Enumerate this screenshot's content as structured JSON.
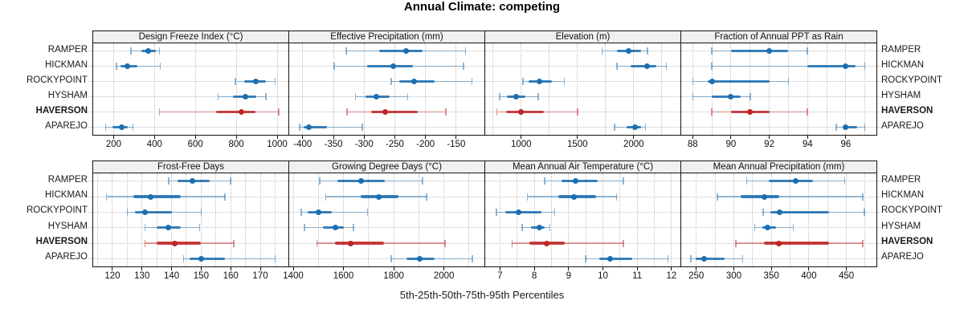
{
  "chart_data": {
    "type": "scatter",
    "subtype": "lattice-style percentile dotplot, 2x4 panel grid, one row per site",
    "title": "Annual Climate: competing",
    "caption": "5th-25th-50th-75th-95th Percentiles",
    "percentile_levels": [
      5,
      25,
      50,
      75,
      95
    ],
    "sites_top_to_bottom": [
      "RAMPER",
      "HICKMAN",
      "ROCKYPOINT",
      "HYSHAM",
      "HAVERSON",
      "APAREJO"
    ],
    "highlighted_site": "HAVERSON",
    "legend_position": "none",
    "grid": "dotted horizontal line per site row; dotted vertical lines at axis grid positions",
    "colors": {
      "series_normal": "#1c6fb0",
      "series_highlight": "#bf2626",
      "strip_bg": "#f0f0f0",
      "panel_border": "#141414",
      "gridline": "#c0c0c0",
      "text": "#1a1a1a"
    },
    "panels": [
      {
        "label": "Design Freeze Index (°C)",
        "row": 0,
        "col": 0,
        "xlim": [
          100,
          1055
        ],
        "ticks": [
          200,
          400,
          600,
          800,
          1000
        ],
        "gridlines": [
          200,
          400,
          600,
          800,
          1000
        ],
        "series": {
          "RAMPER": [
            285,
            335,
            370,
            405,
            425
          ],
          "HICKMAN": [
            213,
            232,
            268,
            317,
            428
          ],
          "ROCKYPOINT": [
            795,
            840,
            895,
            945,
            990
          ],
          "HYSHAM": [
            712,
            785,
            845,
            898,
            945
          ],
          "HAVERSON": [
            425,
            700,
            825,
            893,
            1008
          ],
          "APAREJO": [
            160,
            195,
            240,
            270,
            295
          ]
        }
      },
      {
        "label": "Effective Precipitation (mm)",
        "row": 0,
        "col": 1,
        "xlim": [
          -422,
          -104
        ],
        "ticks": [
          -400,
          -350,
          -300,
          -250,
          -200,
          -150
        ],
        "gridlines": [
          -400,
          -350,
          -300,
          -250,
          -200,
          -150
        ],
        "series": {
          "RAMPER": [
            -329,
            -275,
            -231,
            -205,
            -135
          ],
          "HICKMAN": [
            -349,
            -295,
            -252,
            -220,
            -138
          ],
          "ROCKYPOINT": [
            -256,
            -243,
            -219,
            -185,
            -124
          ],
          "HYSHAM": [
            -314,
            -298,
            -280,
            -259,
            -229
          ],
          "HAVERSON": [
            -328,
            -288,
            -265,
            -212,
            -167
          ],
          "APAREJO": [
            -405,
            -398,
            -390,
            -360,
            -303
          ]
        }
      },
      {
        "label": "Elevation (m)",
        "row": 0,
        "col": 2,
        "xlim": [
          680,
          2416
        ],
        "ticks": [
          1000,
          1500,
          2000
        ],
        "gridlines": [
          750,
          1000,
          1250,
          1500,
          1750,
          2000,
          2250
        ],
        "series": {
          "RAMPER": [
            1720,
            1850,
            1958,
            2065,
            2122
          ],
          "HICKMAN": [
            1852,
            1970,
            2122,
            2205,
            2292
          ],
          "ROCKYPOINT": [
            1015,
            1065,
            1165,
            1275,
            1385
          ],
          "HYSHAM": [
            810,
            875,
            958,
            1040,
            1153
          ],
          "HAVERSON": [
            785,
            865,
            1000,
            1205,
            1500
          ],
          "APAREJO": [
            1830,
            1935,
            2012,
            2065,
            2105
          ]
        }
      },
      {
        "label": "Fraction of Annual PPT as Rain",
        "row": 0,
        "col": 3,
        "xlim": [
          87.4,
          97.6
        ],
        "ticks": [
          88,
          90,
          92,
          94,
          96
        ],
        "gridlines": [
          88,
          89,
          90,
          91,
          92,
          93,
          94,
          95,
          96,
          97
        ],
        "series": {
          "RAMPER": [
            89,
            90,
            92,
            93,
            94
          ],
          "HICKMAN": [
            89,
            94,
            96,
            96.5,
            97
          ],
          "ROCKYPOINT": [
            88,
            88.8,
            89,
            92,
            93
          ],
          "HYSHAM": [
            88,
            89,
            90,
            90.5,
            91
          ],
          "HAVERSON": [
            89,
            90,
            91,
            92,
            94
          ],
          "APAREJO": [
            95.5,
            95.9,
            96,
            96.6,
            97
          ]
        }
      },
      {
        "label": "Frost-Free Days",
        "row": 1,
        "col": 0,
        "xlim": [
          113.5,
          179.5
        ],
        "ticks": [
          120,
          130,
          140,
          150,
          160,
          170
        ],
        "gridlines": [
          115,
          120,
          125,
          130,
          135,
          140,
          145,
          150,
          155,
          160,
          165,
          170,
          175
        ],
        "series": {
          "RAMPER": [
            139,
            142,
            147,
            153,
            160
          ],
          "HICKMAN": [
            118,
            127,
            133,
            143,
            158
          ],
          "ROCKYPOINT": [
            125,
            127.5,
            131,
            140,
            150
          ],
          "HYSHAM": [
            131,
            135,
            139,
            143,
            149.5
          ],
          "HAVERSON": [
            131,
            135,
            141,
            150,
            161
          ],
          "APAREJO": [
            144,
            146,
            150,
            158,
            175
          ]
        }
      },
      {
        "label": "Growing Degree Days (°C)",
        "row": 1,
        "col": 1,
        "xlim": [
          1384,
          2161
        ],
        "ticks": [
          1400,
          1600,
          1800,
          2000
        ],
        "gridlines": [
          1400,
          1500,
          1600,
          1700,
          1800,
          1900,
          2000,
          2100
        ],
        "series": {
          "RAMPER": [
            1505,
            1575,
            1670,
            1765,
            1915
          ],
          "HICKMAN": [
            1530,
            1670,
            1742,
            1820,
            1930
          ],
          "ROCKYPOINT": [
            1432,
            1458,
            1500,
            1554,
            1695
          ],
          "HYSHAM": [
            1445,
            1517,
            1568,
            1600,
            1640
          ],
          "HAVERSON": [
            1494,
            1565,
            1630,
            1760,
            2005
          ],
          "APAREJO": [
            1790,
            1852,
            1905,
            1964,
            2113
          ]
        }
      },
      {
        "label": "Mean Annual Air Temperature (°C)",
        "row": 1,
        "col": 2,
        "xlim": [
          6.57,
          12.26
        ],
        "ticks": [
          7,
          8,
          9,
          10,
          11,
          12
        ],
        "gridlines": [
          7,
          7.5,
          8,
          8.5,
          9,
          9.5,
          10,
          10.5,
          11,
          11.5,
          12
        ],
        "series": {
          "RAMPER": [
            8.3,
            8.8,
            9.2,
            9.85,
            10.6
          ],
          "HICKMAN": [
            7.8,
            8.7,
            9.15,
            9.8,
            10.4
          ],
          "ROCKYPOINT": [
            6.9,
            7.15,
            7.55,
            8.2,
            8.6
          ],
          "HYSHAM": [
            7.65,
            7.9,
            8.15,
            8.3,
            8.45
          ],
          "HAVERSON": [
            7.35,
            7.85,
            8.35,
            8.9,
            10.6
          ],
          "APAREJO": [
            9.5,
            9.9,
            10.2,
            10.85,
            11.9
          ]
        }
      },
      {
        "label": "Mean Annual Precipitation (mm)",
        "row": 1,
        "col": 3,
        "xlim": [
          230,
          490
        ],
        "ticks": [
          250,
          300,
          350,
          400,
          450
        ],
        "gridlines": [
          250,
          275,
          300,
          325,
          350,
          375,
          400,
          425,
          450,
          475
        ],
        "series": {
          "RAMPER": [
            317,
            347,
            382,
            406,
            448
          ],
          "HICKMAN": [
            278,
            309,
            341,
            361,
            472
          ],
          "ROCKYPOINT": [
            339,
            349,
            361,
            427,
            474
          ],
          "HYSHAM": [
            328,
            338,
            345,
            356,
            379
          ],
          "HAVERSON": [
            303,
            340,
            360,
            427,
            472
          ],
          "APAREJO": [
            243,
            249,
            260,
            288,
            312
          ]
        }
      }
    ]
  }
}
